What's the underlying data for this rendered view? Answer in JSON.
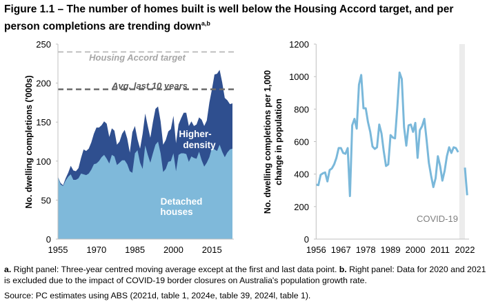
{
  "title": "Figure 1.1 – The number of homes built is well below the Housing Accord target, and per person completions are trending down",
  "title_superscript": "a,b",
  "notes": {
    "a_marker": "a.",
    "a_text": " Right panel: Three-year centred moving average except at the first and last data point. ",
    "b_marker": "b.",
    "b_text": " Right panel: Data for 2020 and 2021 is excluded due to the impact of COVID-19 border closures on Australia's population growth rate.",
    "source": "Source: PC estimates using ABS (2021d, table 1, 2024e, table 39, 2024l, table 1)."
  },
  "chart_data": [
    {
      "type": "area",
      "stacked": true,
      "ylabel": "No. dwelling completions ('000s)",
      "xlabel": "",
      "ylim": [
        0,
        250
      ],
      "yticks": [
        0,
        50,
        100,
        150,
        200,
        250
      ],
      "xticks": [
        1955,
        1970,
        1985,
        2000,
        2015
      ],
      "x": [
        1955,
        1956,
        1957,
        1958,
        1959,
        1960,
        1961,
        1962,
        1963,
        1964,
        1965,
        1966,
        1967,
        1968,
        1969,
        1970,
        1971,
        1972,
        1973,
        1974,
        1975,
        1976,
        1977,
        1978,
        1979,
        1980,
        1981,
        1982,
        1983,
        1984,
        1985,
        1986,
        1987,
        1988,
        1989,
        1990,
        1991,
        1992,
        1993,
        1994,
        1995,
        1996,
        1997,
        1998,
        1999,
        2000,
        2001,
        2002,
        2003,
        2004,
        2005,
        2006,
        2007,
        2008,
        2009,
        2010,
        2011,
        2012,
        2013,
        2014,
        2015,
        2016,
        2017,
        2018,
        2019,
        2020,
        2021,
        2022,
        2023
      ],
      "series": [
        {
          "name": "Detached houses",
          "color": "#7fb9da",
          "values": [
            80,
            70,
            68,
            75,
            80,
            83,
            76,
            76,
            78,
            84,
            83,
            82,
            84,
            89,
            96,
            97,
            100,
            105,
            108,
            103,
            97,
            108,
            106,
            95,
            98,
            101,
            101,
            96,
            87,
            85,
            110,
            114,
            98,
            90,
            120,
            108,
            98,
            110,
            121,
            125,
            110,
            86,
            90,
            99,
            100,
            110,
            87,
            108,
            110,
            110,
            109,
            99,
            106,
            104,
            103,
            112,
            101,
            93,
            98,
            105,
            117,
            115,
            113,
            121,
            112,
            105,
            111,
            115,
            116
          ]
        },
        {
          "name": "Higher-density",
          "color": "#2f4f8f",
          "values": [
            0,
            2,
            1,
            3,
            5,
            11,
            12,
            11,
            13,
            20,
            32,
            31,
            32,
            35,
            39,
            46,
            43,
            41,
            43,
            45,
            34,
            34,
            33,
            26,
            27,
            34,
            39,
            33,
            24,
            52,
            35,
            14,
            18,
            45,
            41,
            37,
            32,
            40,
            46,
            45,
            41,
            35,
            37,
            39,
            41,
            48,
            36,
            39,
            45,
            52,
            53,
            46,
            45,
            41,
            44,
            44,
            52,
            52,
            54,
            70,
            75,
            96,
            99,
            96,
            89,
            76,
            67,
            58,
            58
          ]
        }
      ],
      "reference_lines": [
        {
          "label": "Housing Accord target",
          "value": 240,
          "color": "#bfbfbf"
        },
        {
          "label": "Avg. last 10 years",
          "value": 192,
          "color": "#6b6b6b"
        }
      ],
      "annotations": {
        "higher_density_line1": "Higher-",
        "higher_density_line2": "density",
        "detached_line1": "Detached",
        "detached_line2": "houses"
      },
      "grid": false
    },
    {
      "type": "line",
      "ylabel": "No. dwelling completions per 1,000 change in population",
      "ylabel_line1": "No. dwelling completions per 1,000",
      "ylabel_line2": "change in population",
      "xlabel": "",
      "ylim": [
        0,
        1200
      ],
      "yticks": [
        0,
        200,
        400,
        600,
        800,
        1000,
        1200
      ],
      "xticks": [
        1956,
        1967,
        1978,
        1989,
        2000,
        2011,
        2022
      ],
      "color": "#7ab8da",
      "shaded_region": {
        "label": "COVID-19",
        "from": 2019.5,
        "to": 2022,
        "color": "#ececec"
      },
      "segments": [
        {
          "x": [
            1956,
            1957,
            1958,
            1959,
            1960,
            1961,
            1962,
            1963,
            1964,
            1965,
            1966,
            1967,
            1968,
            1969,
            1970,
            1971,
            1972,
            1973,
            1974,
            1975,
            1976,
            1977,
            1978,
            1979,
            1980,
            1981,
            1982,
            1983,
            1984,
            1985,
            1986,
            1987,
            1988,
            1989,
            1990,
            1991,
            1992,
            1993,
            1994,
            1995,
            1996,
            1997,
            1998,
            1999,
            2000,
            2001,
            2002,
            2003,
            2004,
            2005,
            2006,
            2007,
            2008,
            2009,
            2010,
            2011,
            2012,
            2013,
            2014,
            2015,
            2016,
            2017,
            2018,
            2019
          ],
          "y": [
            335,
            332,
            395,
            405,
            410,
            355,
            425,
            435,
            460,
            500,
            560,
            560,
            530,
            525,
            560,
            265,
            700,
            740,
            680,
            950,
            1010,
            805,
            805,
            720,
            660,
            570,
            555,
            565,
            705,
            650,
            540,
            450,
            460,
            640,
            625,
            620,
            810,
            1025,
            985,
            690,
            575,
            700,
            705,
            660,
            715,
            500,
            670,
            695,
            740,
            610,
            470,
            390,
            320,
            375,
            510,
            450,
            360,
            420,
            510,
            565,
            530,
            565,
            560,
            535
          ]
        },
        {
          "x": [
            2022,
            2023
          ],
          "y": [
            440,
            270
          ]
        }
      ],
      "grid": false
    }
  ]
}
